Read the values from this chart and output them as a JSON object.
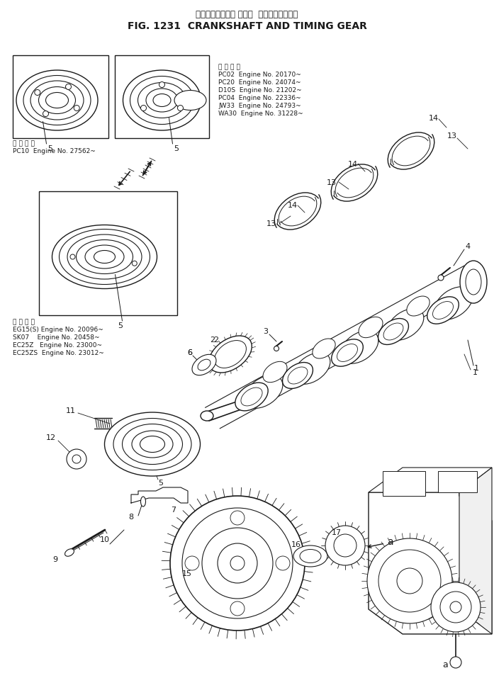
{
  "title_jp": "クランクシャフト および  タイミングギヤー",
  "title_en": "FIG. 1231  CRANKSHAFT AND TIMING GEAR",
  "bg_color": "#ffffff",
  "line_color": "#1a1a1a",
  "fig_width": 6.97,
  "fig_height": 9.74,
  "dpi": 100,
  "app_text1": [
    "適 用 号 機",
    "PC02  Engine No. 20170~",
    "PC20  Engine No. 24074~",
    "D10S  Engine No. 21202~",
    "PC04  Engine No. 22336~",
    "JW33  Engine No. 24793~",
    "WA30  Engine No. 31228~"
  ],
  "app_text2": [
    "適 用 号 機",
    "PC10  Engine No. 27562~"
  ],
  "app_text3": [
    "適 用 号 機",
    "EG15(S) Engine No. 20096~",
    "SK07    Engine No. 20458~",
    "EC25Z   Engine No. 23000~",
    "EC25ZS  Engine No. 23012~"
  ]
}
